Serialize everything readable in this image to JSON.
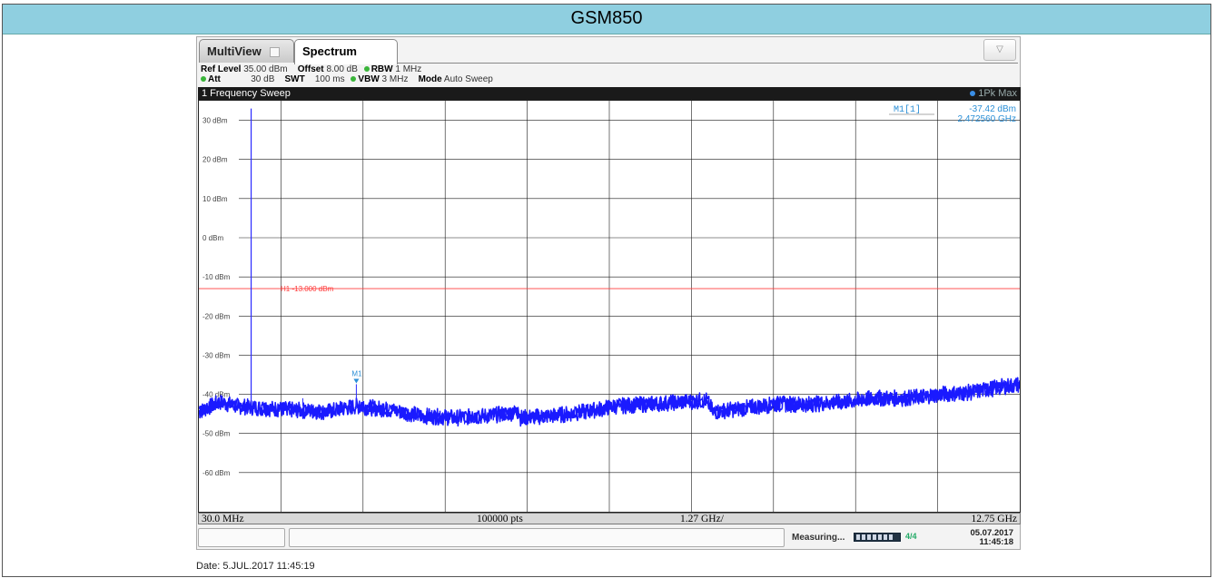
{
  "page_title": "GSM850",
  "tabs": [
    {
      "label": "MultiView"
    },
    {
      "label": "Spectrum"
    }
  ],
  "settings": {
    "ref_level_label": "Ref Level",
    "ref_level_value": "35.00 dBm",
    "offset_label": "Offset",
    "offset_value": "8.00 dB",
    "rbw_label": "RBW",
    "rbw_value": "1 MHz",
    "att_label": "Att",
    "att_value": "30 dB",
    "swt_label": "SWT",
    "swt_value": "100 ms",
    "vbw_label": "VBW",
    "vbw_value": "3 MHz",
    "mode_label": "Mode",
    "mode_value": "Auto Sweep"
  },
  "sweep": {
    "title": "1 Frequency Sweep",
    "trace_label": "1Pk Max"
  },
  "marker": {
    "name": "M1[1]",
    "level": "-37.42 dBm",
    "freq": "2.472560 GHz",
    "tag": "M1"
  },
  "limit_line": {
    "label": "H1 -13.000 dBm",
    "value": -13,
    "color": "#ff3b3b"
  },
  "axis": {
    "start": "30.0 MHz",
    "points": "100000 pts",
    "step": "1.27 GHz/",
    "stop": "12.75 GHz"
  },
  "status": {
    "measuring": "Measuring...",
    "level_indicator": "4/4",
    "date": "05.07.2017",
    "time": "11:45:18"
  },
  "caption": "Date: 5.JUL.2017  11:45:19",
  "colors": {
    "trace": "#1a1aff",
    "marker": "#2b8fd6",
    "title_bar": "#8fcfe0"
  },
  "chart_data": {
    "type": "line",
    "y_ticks": [
      "30 dBm",
      "20 dBm",
      "10 dBm",
      "0 dBm",
      "-10 dBm",
      "-20 dBm",
      "-30 dBm",
      "-40 dBm",
      "-50 dBm",
      "-60 dBm"
    ],
    "ylim": [
      -70,
      35
    ],
    "xlim": [
      0.03,
      12.75
    ],
    "series": [
      {
        "x": [
          0.03,
          0.35,
          0.6,
          1.0,
          1.5,
          2.0,
          2.47,
          3.0,
          3.5,
          4.0,
          4.5,
          5.0,
          5.01,
          5.5,
          6.0,
          6.5,
          7.0,
          7.5,
          7.9,
          8.0,
          8.5,
          9.0,
          9.5,
          10.0,
          10.5,
          11.0,
          11.5,
          12.0,
          12.5,
          12.75
        ],
        "values": [
          -44.5,
          -42,
          -43,
          -43.5,
          -44,
          -44.5,
          -43,
          -44,
          -45.5,
          -46,
          -45.5,
          -44.5,
          -46,
          -45.5,
          -44.5,
          -43,
          -42.5,
          -42,
          -41.5,
          -44.5,
          -43.5,
          -42.5,
          -42.5,
          -42,
          -41,
          -41,
          -40,
          -39.5,
          -38,
          -37.5
        ]
      }
    ],
    "carrier": {
      "x": 0.84,
      "value": 33
    },
    "spur_markers": [
      {
        "x": 1.64,
        "value": -41
      },
      {
        "x": 2.47,
        "value": -37.42
      }
    ],
    "grid": true
  }
}
